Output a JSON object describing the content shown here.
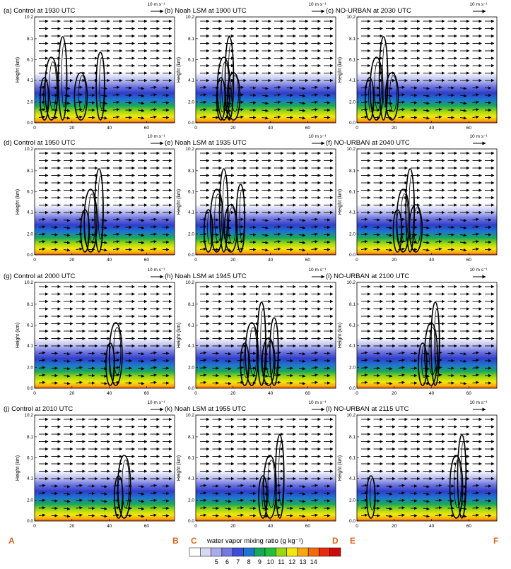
{
  "chart_data": {
    "type": "heatmap",
    "colorbar": {
      "title": "water vapor mixing ratio (g kg⁻¹)",
      "ticks": [
        "5",
        "6",
        "7",
        "8",
        "9",
        "10",
        "11",
        "12",
        "13",
        "14"
      ],
      "colors": [
        "#ffffff",
        "#d8d8f2",
        "#a8acec",
        "#7478e0",
        "#3a4ed8",
        "#1f76d2",
        "#18a85a",
        "#22c03a",
        "#9cd614",
        "#f2e80e",
        "#f8a80c",
        "#f26a10",
        "#e82c10",
        "#cc0c0c"
      ]
    },
    "wind_reference": {
      "label": "10 m s⁻¹"
    },
    "y_axis": {
      "label": "Height (km)",
      "ticks": [
        "0.0",
        "2.0",
        "4.1",
        "6.1",
        "8.1",
        "10.2"
      ]
    },
    "x_axis": {
      "ticks": [
        "0",
        "20",
        "40",
        "60"
      ],
      "range": [
        0,
        75
      ]
    },
    "cross_section_endpoints": [
      "A",
      "B",
      "C",
      "D",
      "E",
      "F"
    ],
    "panels": [
      {
        "title": "(a) Control at 1930 UTC"
      },
      {
        "title": "(b) Noah LSM at 1900 UTC"
      },
      {
        "title": "(c) NO-URBAN at 2030 UTC"
      },
      {
        "title": "(d) Control at 1950 UTC"
      },
      {
        "title": "(e) Noah LSM at 1935 UTC"
      },
      {
        "title": "(f) NO-URBAN at 2040 UTC"
      },
      {
        "title": "(g) Control at 2000 UTC"
      },
      {
        "title": "(h) Noah LSM at 1945 UTC"
      },
      {
        "title": "(i) NO-URBAN at 2100 UTC"
      },
      {
        "title": "(j) Control at 2010 UTC"
      },
      {
        "title": "(k) Noah LSM at 1955 UTC"
      },
      {
        "title": "(l) NO-URBAN at 2115 UTC"
      }
    ]
  }
}
